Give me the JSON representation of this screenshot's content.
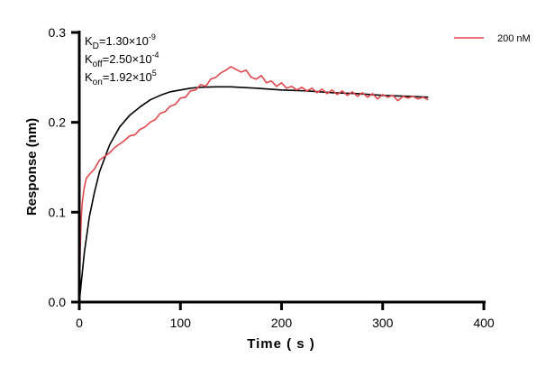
{
  "chart_data": {
    "type": "line",
    "xlabel": "Time ( s )",
    "ylabel": "Response (nm)",
    "xlim": [
      0,
      400
    ],
    "ylim": [
      0,
      0.3
    ],
    "xticks": [
      "0",
      "100",
      "200",
      "300",
      "400"
    ],
    "yticks": [
      "0.0",
      "0.1",
      "0.2",
      "0.3"
    ],
    "grid": false,
    "legend_position": "top-right",
    "annotations": [
      {
        "base": "K",
        "sub": "D",
        "mid": "=1.30×10",
        "sup": "-9"
      },
      {
        "base": "K",
        "sub": "off",
        "mid": "=2.50×10",
        "sup": "-4"
      },
      {
        "base": "K",
        "sub": "on",
        "mid": "=1.92×10",
        "sup": "5"
      }
    ],
    "series": [
      {
        "name": "200 nM",
        "color": "#e0474c",
        "x": [
          0,
          1,
          2,
          3,
          5,
          7,
          10,
          15,
          20,
          25,
          30,
          35,
          40,
          45,
          50,
          55,
          60,
          65,
          70,
          75,
          80,
          85,
          90,
          95,
          100,
          105,
          110,
          115,
          120,
          125,
          130,
          135,
          140,
          145,
          150,
          155,
          160,
          165,
          170,
          175,
          180,
          185,
          190,
          195,
          200,
          205,
          210,
          215,
          220,
          225,
          230,
          235,
          240,
          245,
          250,
          255,
          260,
          265,
          270,
          275,
          280,
          285,
          290,
          295,
          300,
          305,
          310,
          315,
          320,
          325,
          330,
          335,
          340,
          345
        ],
        "y": [
          0.0,
          0.06,
          0.095,
          0.112,
          0.128,
          0.138,
          0.142,
          0.148,
          0.158,
          0.162,
          0.166,
          0.172,
          0.176,
          0.18,
          0.185,
          0.186,
          0.192,
          0.195,
          0.2,
          0.203,
          0.21,
          0.212,
          0.218,
          0.22,
          0.227,
          0.228,
          0.235,
          0.236,
          0.242,
          0.24,
          0.248,
          0.25,
          0.255,
          0.258,
          0.262,
          0.259,
          0.256,
          0.258,
          0.25,
          0.248,
          0.252,
          0.244,
          0.246,
          0.24,
          0.244,
          0.238,
          0.24,
          0.236,
          0.239,
          0.235,
          0.238,
          0.233,
          0.237,
          0.232,
          0.236,
          0.231,
          0.235,
          0.23,
          0.234,
          0.229,
          0.233,
          0.228,
          0.232,
          0.226,
          0.231,
          0.228,
          0.23,
          0.224,
          0.229,
          0.227,
          0.229,
          0.226,
          0.228,
          0.225
        ]
      },
      {
        "color": "#000000",
        "x": [
          0,
          5,
          10,
          15,
          20,
          30,
          40,
          50,
          60,
          70,
          80,
          90,
          100,
          110,
          120,
          135,
          150,
          175,
          200,
          225,
          250,
          275,
          300,
          325,
          345
        ],
        "y": [
          0,
          0.055,
          0.095,
          0.122,
          0.145,
          0.175,
          0.195,
          0.208,
          0.217,
          0.225,
          0.23,
          0.234,
          0.236,
          0.238,
          0.239,
          0.2395,
          0.2395,
          0.238,
          0.236,
          0.235,
          0.233,
          0.232,
          0.23,
          0.229,
          0.228
        ]
      }
    ]
  }
}
